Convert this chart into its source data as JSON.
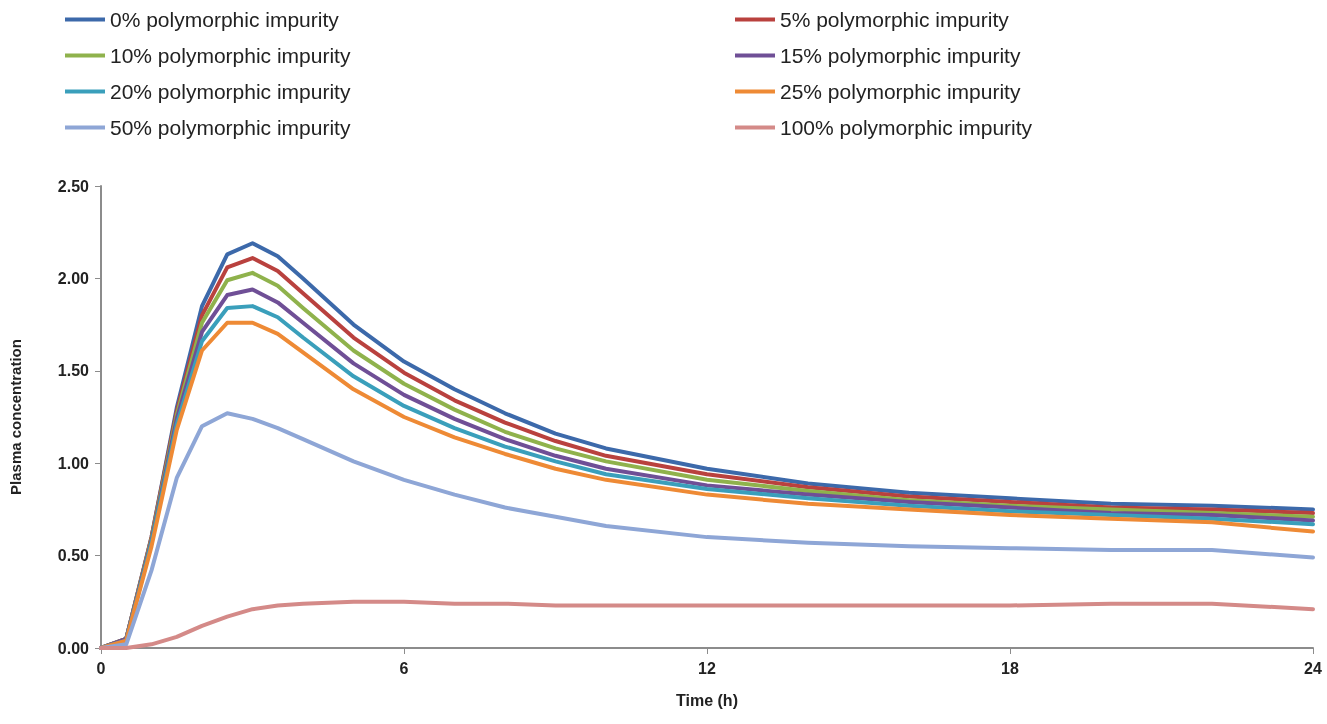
{
  "chart_data": {
    "type": "line",
    "xlabel": "Time (h)",
    "ylabel": "Plasma concentration",
    "x": [
      0,
      0.5,
      1,
      1.5,
      2,
      2.5,
      3,
      3.5,
      4,
      5,
      6,
      7,
      8,
      9,
      10,
      12,
      14,
      16,
      18,
      20,
      22,
      24
    ],
    "xlim": [
      0,
      24
    ],
    "xticks": [
      0,
      6,
      12,
      18,
      24
    ],
    "ylim": [
      0,
      2.5
    ],
    "yticks": [
      {
        "value": 0,
        "label": "0.00"
      },
      {
        "value": 0.5,
        "label": "0.50"
      },
      {
        "value": 1,
        "label": "1.00"
      },
      {
        "value": 1.5,
        "label": "1.50"
      },
      {
        "value": 2,
        "label": "2.00"
      },
      {
        "value": 2.5,
        "label": "2.50"
      }
    ],
    "grid": false,
    "legend": "top",
    "marker": "none",
    "line_style": "solid",
    "series": [
      {
        "name": "0% polymorphic impurity",
        "color": "#3c69aa",
        "values": [
          0,
          0.05,
          0.6,
          1.3,
          1.85,
          2.13,
          2.19,
          2.12,
          2.0,
          1.75,
          1.55,
          1.4,
          1.27,
          1.16,
          1.08,
          0.97,
          0.89,
          0.84,
          0.81,
          0.78,
          0.77,
          0.75
        ]
      },
      {
        "name": "5% polymorphic impurity",
        "color": "#b9413e",
        "values": [
          0,
          0.05,
          0.6,
          1.28,
          1.8,
          2.06,
          2.11,
          2.04,
          1.92,
          1.68,
          1.49,
          1.34,
          1.22,
          1.12,
          1.04,
          0.94,
          0.87,
          0.82,
          0.79,
          0.76,
          0.75,
          0.73
        ]
      },
      {
        "name": "10% polymorphic impurity",
        "color": "#8fb24c",
        "values": [
          0,
          0.05,
          0.59,
          1.26,
          1.76,
          1.99,
          2.03,
          1.96,
          1.84,
          1.61,
          1.43,
          1.29,
          1.17,
          1.08,
          1.01,
          0.91,
          0.85,
          0.8,
          0.77,
          0.75,
          0.73,
          0.71
        ]
      },
      {
        "name": "15% polymorphic impurity",
        "color": "#6f4f96",
        "values": [
          0,
          0.05,
          0.58,
          1.24,
          1.71,
          1.91,
          1.94,
          1.87,
          1.76,
          1.54,
          1.37,
          1.24,
          1.13,
          1.04,
          0.97,
          0.88,
          0.83,
          0.79,
          0.76,
          0.73,
          0.72,
          0.69
        ]
      },
      {
        "name": "20% polymorphic impurity",
        "color": "#3a9fbb",
        "values": [
          0,
          0.04,
          0.57,
          1.21,
          1.66,
          1.84,
          1.85,
          1.79,
          1.68,
          1.47,
          1.31,
          1.19,
          1.09,
          1.01,
          0.94,
          0.86,
          0.81,
          0.77,
          0.74,
          0.72,
          0.7,
          0.67
        ]
      },
      {
        "name": "25% polymorphic impurity",
        "color": "#ee8a35",
        "values": [
          0,
          0.04,
          0.55,
          1.18,
          1.61,
          1.76,
          1.76,
          1.7,
          1.6,
          1.4,
          1.25,
          1.14,
          1.05,
          0.97,
          0.91,
          0.83,
          0.78,
          0.75,
          0.72,
          0.7,
          0.68,
          0.63
        ]
      },
      {
        "name": "50% polymorphic impurity",
        "color": "#8ea6d6",
        "values": [
          0,
          0.02,
          0.42,
          0.92,
          1.2,
          1.27,
          1.24,
          1.19,
          1.13,
          1.01,
          0.91,
          0.83,
          0.76,
          0.71,
          0.66,
          0.6,
          0.57,
          0.55,
          0.54,
          0.53,
          0.53,
          0.49
        ]
      },
      {
        "name": "100% polymorphic impurity",
        "color": "#d48a88",
        "values": [
          0,
          0,
          0.02,
          0.06,
          0.12,
          0.17,
          0.21,
          0.23,
          0.24,
          0.25,
          0.25,
          0.24,
          0.24,
          0.23,
          0.23,
          0.23,
          0.23,
          0.23,
          0.23,
          0.24,
          0.24,
          0.21
        ]
      }
    ]
  }
}
